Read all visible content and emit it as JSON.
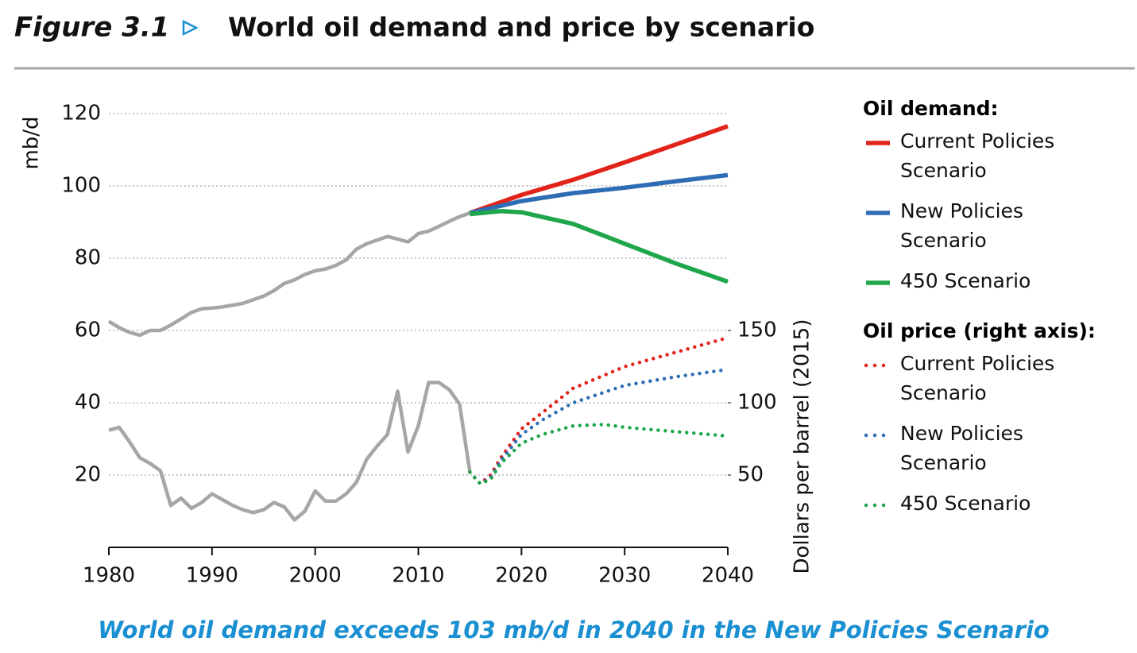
{
  "chart_data": {
    "type": "line",
    "figure_label": "Figure 3.1",
    "title": "World oil demand and price by scenario",
    "caption": "World oil demand exceeds 103 mb/d in 2040 in the New Policies Scenario",
    "y_label": "mb/d",
    "y2_label": "Dollars per barrel (2015)",
    "demand_legend_title": "Oil demand:",
    "price_legend_title": "Oil price (right axis):",
    "xlim": [
      1980,
      2040
    ],
    "xticks": [
      1980,
      1990,
      2000,
      2010,
      2020,
      2030,
      2040
    ],
    "ylim": [
      0,
      120
    ],
    "yticks": [
      20,
      40,
      60,
      80,
      100,
      120
    ],
    "y2lim": [
      0,
      300
    ],
    "y2ticks": [
      50,
      100,
      150
    ],
    "grid": true,
    "series": [
      {
        "color": "#a6a6a6",
        "axis": "y",
        "style": "solid",
        "x": [
          1980,
          1981,
          1982,
          1983,
          1984,
          1985,
          1986,
          1987,
          1988,
          1989,
          1990,
          1991,
          1992,
          1993,
          1994,
          1995,
          1996,
          1997,
          1998,
          1999,
          2000,
          2001,
          2002,
          2003,
          2004,
          2005,
          2006,
          2007,
          2008,
          2009,
          2010,
          2011,
          2012,
          2013,
          2014,
          2015
        ],
        "values": [
          62.5,
          60.8,
          59.5,
          58.7,
          60,
          60,
          61.5,
          63.2,
          65,
          66,
          66.2,
          66.5,
          67,
          67.5,
          68.5,
          69.5,
          71,
          73,
          74,
          75.5,
          76.5,
          77,
          78,
          79.5,
          82.5,
          84,
          85,
          86,
          85.3,
          84.5,
          86.8,
          87.5,
          88.8,
          90.2,
          91.5,
          92.5
        ]
      },
      {
        "name": "Current Policies Scenario",
        "color": "#e2231a",
        "axis": "y",
        "style": "solid",
        "x": [
          2015,
          2020,
          2025,
          2030,
          2035,
          2040
        ],
        "values": [
          92.5,
          97.5,
          101.7,
          106.5,
          111.5,
          116.5
        ]
      },
      {
        "name": "New Policies Scenario",
        "color": "#2e6db4",
        "axis": "y",
        "style": "solid",
        "x": [
          2015,
          2020,
          2025,
          2030,
          2035,
          2040
        ],
        "values": [
          92.5,
          95.8,
          98,
          99.5,
          101.3,
          103
        ]
      },
      {
        "name": "450 Scenario",
        "color": "#1fa64a",
        "axis": "y",
        "style": "solid",
        "x": [
          2015,
          2018,
          2020,
          2025,
          2030,
          2035,
          2040
        ],
        "values": [
          92.2,
          93,
          92.7,
          89.5,
          84,
          78.5,
          73.5
        ]
      },
      {
        "color": "#a6a6a6",
        "axis": "y2",
        "style": "solid",
        "x": [
          1980,
          1981,
          1982,
          1983,
          1984,
          1985,
          1986,
          1987,
          1988,
          1989,
          1990,
          1991,
          1992,
          1993,
          1994,
          1995,
          1996,
          1997,
          1998,
          1999,
          2000,
          2001,
          2002,
          2003,
          2004,
          2005,
          2006,
          2007,
          2008,
          2009,
          2010,
          2011,
          2012,
          2013,
          2014,
          2015
        ],
        "values": [
          81,
          83,
          73,
          62,
          58,
          53,
          29,
          34,
          27,
          31,
          37,
          33,
          29,
          26,
          24,
          26,
          31,
          28,
          19,
          25,
          39,
          32,
          32,
          37,
          45,
          61,
          70,
          78,
          108,
          66,
          84,
          114,
          114,
          109,
          99,
          52
        ]
      },
      {
        "name": "Current Policies Scenario",
        "color": "#e2231a",
        "axis": "y2",
        "style": "dotted",
        "x": [
          2015,
          2016,
          2017,
          2018,
          2020,
          2022,
          2025,
          2030,
          2035,
          2040
        ],
        "values": [
          52,
          44,
          50,
          62,
          82,
          93,
          110,
          125,
          135,
          145
        ]
      },
      {
        "name": "New Policies Scenario",
        "color": "#2e6db4",
        "axis": "y2",
        "style": "dotted",
        "x": [
          2015,
          2016,
          2017,
          2018,
          2020,
          2022,
          2025,
          2030,
          2035,
          2040
        ],
        "values": [
          52,
          44,
          48,
          60,
          78,
          88,
          100,
          112,
          118,
          123
        ]
      },
      {
        "name": "450 Scenario",
        "color": "#1fa64a",
        "axis": "y2",
        "style": "dotted",
        "x": [
          2015,
          2016,
          2017,
          2018,
          2020,
          2022,
          2025,
          2028,
          2030,
          2035,
          2040
        ],
        "values": [
          52,
          44,
          47,
          58,
          72,
          78,
          84,
          85,
          83,
          80,
          77
        ]
      }
    ]
  }
}
